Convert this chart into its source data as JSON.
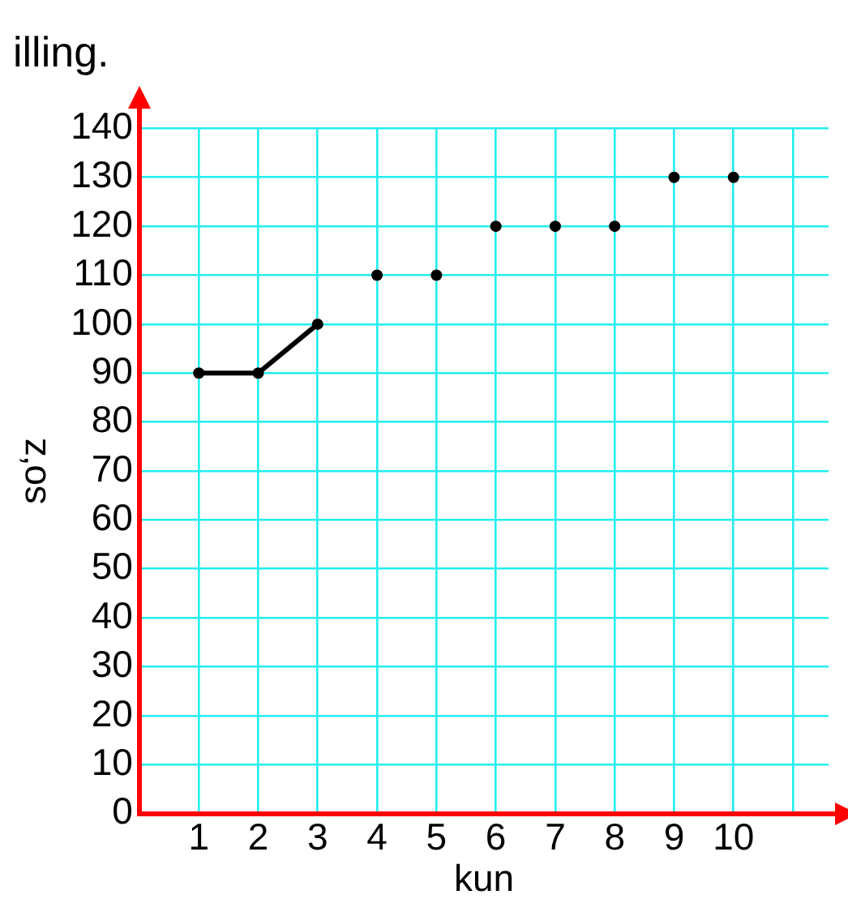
{
  "chart_data": {
    "type": "line",
    "title": "illing.",
    "xlabel": "kun",
    "ylabel": "so‘z",
    "xlim": [
      0,
      11.6
    ],
    "xticks": [
      1,
      2,
      3,
      4,
      5,
      6,
      7,
      8,
      9,
      10,
      {
        "value": 11,
        "label": null
      }
    ],
    "ylim": [
      0,
      140
    ],
    "yticks": [
      0,
      10,
      20,
      30,
      40,
      50,
      60,
      70,
      80,
      90,
      100,
      110,
      120,
      130,
      140
    ],
    "grid": true,
    "legend": false,
    "marker": "circle",
    "line_style": "solid",
    "series": [
      {
        "color": "#000000",
        "x": [
          1,
          2,
          3
        ],
        "values": [
          90,
          90,
          100
        ]
      },
      {
        "type": "scatter",
        "color": "#000000",
        "x": [
          4,
          5,
          6,
          7,
          8,
          9,
          10
        ],
        "values": [
          110,
          110,
          120,
          120,
          120,
          130,
          130
        ]
      }
    ]
  }
}
